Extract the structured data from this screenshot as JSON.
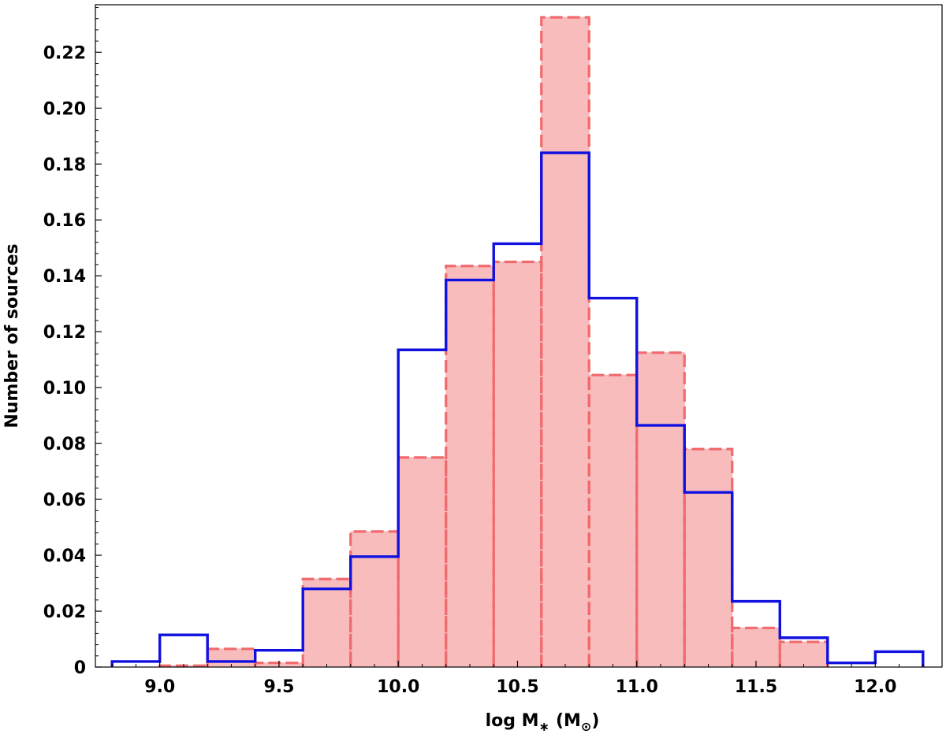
{
  "chart_data": {
    "type": "histogram",
    "title": "",
    "xlabel": "log M",
    "xlabel_sub": "∗",
    "xlabel_units": "(M",
    "xlabel_units_sub": "⊙",
    "xlabel_units_close": ")",
    "ylabel": "Number of sources",
    "xlim": [
      8.73,
      12.28
    ],
    "ylim": [
      0,
      0.237
    ],
    "xticks": [
      9.0,
      9.5,
      10.0,
      10.5,
      11.0,
      11.5,
      12.0
    ],
    "xtick_labels": [
      "9.0",
      "9.5",
      "10.0",
      "10.5",
      "11.0",
      "11.5",
      "12.0"
    ],
    "yticks": [
      0,
      0.02,
      0.04,
      0.06,
      0.08,
      0.1,
      0.12,
      0.14,
      0.16,
      0.18,
      0.2,
      0.22
    ],
    "ytick_labels": [
      "0",
      "0.02",
      "0.04",
      "0.06",
      "0.08",
      "0.10",
      "0.12",
      "0.14",
      "0.16",
      "0.18",
      "0.20",
      "0.22"
    ],
    "grid": false,
    "legend": null,
    "bin_edges": [
      8.8,
      9.0,
      9.2,
      9.4,
      9.6,
      9.8,
      10.0,
      10.2,
      10.4,
      10.6,
      10.8,
      11.0,
      11.2,
      11.4,
      11.6,
      11.8,
      12.0,
      12.2
    ],
    "series": [
      {
        "style": "step-outline",
        "color": "#1010e0",
        "values": [
          0.002,
          0.0115,
          0.002,
          0.006,
          0.028,
          0.0395,
          0.1135,
          0.1385,
          0.1515,
          0.184,
          0.132,
          0.0865,
          0.0625,
          0.0235,
          0.0105,
          0.0015,
          0.0055
        ]
      },
      {
        "style": "filled-dashed",
        "color": "#f06a6e",
        "fill": "#f8bcbd",
        "values": [
          0,
          0.0005,
          0.0065,
          0.0015,
          0.0315,
          0.0485,
          0.075,
          0.1435,
          0.145,
          0.2325,
          0.1045,
          0.1125,
          0.078,
          0.014,
          0.009,
          0,
          0
        ]
      }
    ]
  }
}
